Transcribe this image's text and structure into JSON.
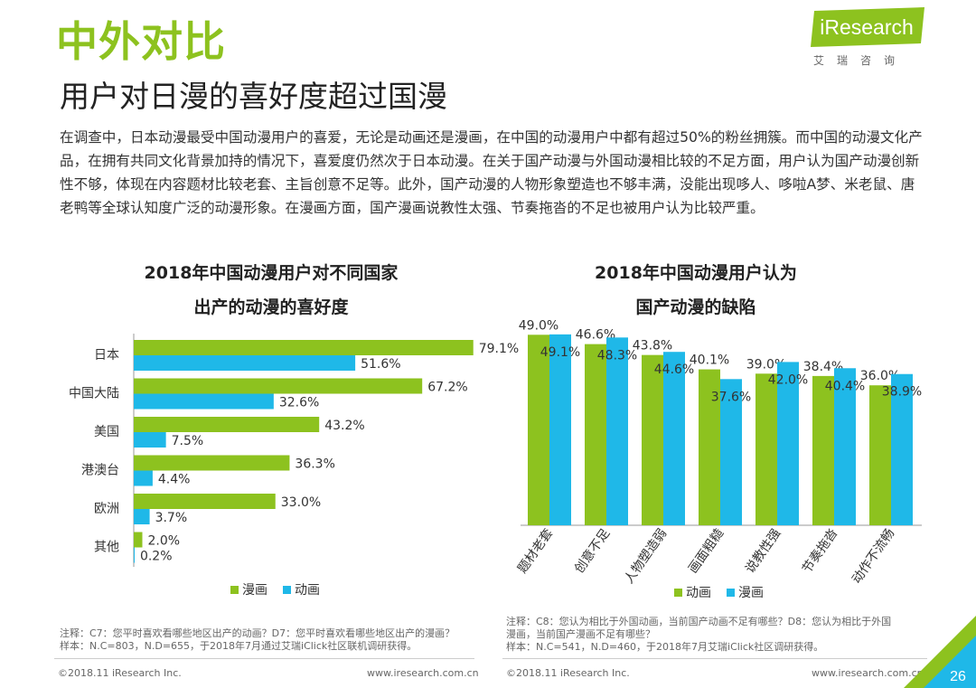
{
  "header": {
    "title": "中外对比",
    "subtitle": "用户对日漫的喜好度超过国漫",
    "logo_text": "iResearch",
    "logo_cn": "艾瑞咨询"
  },
  "intro": "在调查中，日本动漫最受中国动漫用户的喜爱，无论是动画还是漫画，在中国的动漫用户中都有超过50%的粉丝拥簇。而中国的动漫文化产品，在拥有共同文化背景加持的情况下，喜爱度仍然次于日本动漫。在关于国产动漫与外国动漫相比较的不足方面，用户认为国产动漫创新性不够，体现在内容题材比较老套、主旨创意不足等。此外，国产动漫的人物形象塑造也不够丰满，没能出现哆人、哆啦A梦、米老鼠、唐老鸭等全球认知度广泛的动漫形象。在漫画方面，国产漫画说教性太强、节奏拖沓的不足也被用户认为比较严重。",
  "colors": {
    "manga": "#8dc21f",
    "anime": "#1fb8e8"
  },
  "chart_data": [
    {
      "type": "bar",
      "orientation": "horizontal",
      "title": "2018年中国动漫用户对不同国家出产的动漫的喜好度",
      "title_lines": [
        "2018年中国动漫用户对不同国家",
        "出产的动漫的喜好度"
      ],
      "categories": [
        "日本",
        "中国大陆",
        "美国",
        "港澳台",
        "欧洲",
        "其他"
      ],
      "series": [
        {
          "name": "漫画",
          "values": [
            79.1,
            67.2,
            43.2,
            36.3,
            33.0,
            2.0
          ],
          "labels": [
            "79.1%",
            "67.2%",
            "43.2%",
            "36.3%",
            "33.0%",
            "2.0%"
          ]
        },
        {
          "name": "动画",
          "values": [
            51.6,
            32.6,
            7.5,
            4.4,
            3.7,
            0.2
          ],
          "labels": [
            "51.6%",
            "32.6%",
            "7.5%",
            "4.4%",
            "3.7%",
            "0.2%"
          ]
        }
      ],
      "legend_position": "bottom"
    },
    {
      "type": "bar",
      "orientation": "vertical",
      "title": "2018年中国动漫用户认为国产动漫的缺陷",
      "title_lines": [
        "2018年中国动漫用户认为",
        "国产动漫的缺陷"
      ],
      "categories": [
        "题材老套",
        "创意不足",
        "人物塑造弱",
        "画面粗糙",
        "说教性强",
        "节奏拖沓",
        "动作不流畅"
      ],
      "series": [
        {
          "name": "动画",
          "values": [
            49.0,
            46.6,
            43.8,
            40.1,
            39.0,
            38.4,
            36.0
          ],
          "labels": [
            "49.0%",
            "46.6%",
            "43.8%",
            "40.1%",
            "39.0%",
            "38.4%",
            "36.0%"
          ]
        },
        {
          "name": "漫画",
          "values": [
            49.1,
            48.3,
            44.6,
            37.6,
            42.0,
            40.4,
            38.9
          ],
          "labels": [
            "49.1%",
            "48.3%",
            "44.6%",
            "37.6%",
            "42.0%",
            "40.4%",
            "38.9%"
          ]
        }
      ],
      "legend_position": "bottom"
    }
  ],
  "notes": {
    "left": [
      "注释：C7：您平时喜欢看哪些地区出产的动画？D7：您平时喜欢看哪些地区出产的漫画？",
      "样本：N.C=803，N.D=655，于2018年7月通过艾瑞iClick社区联机调研获得。"
    ],
    "right": [
      "注释：C8：您认为相比于外国动画，当前国产动画不足有哪些？D8：您认为相比于外国",
      "漫画，当前国产漫画不足有哪些？",
      "样本：N.C=541，N.D=460，于2018年7月艾瑞iClick社区调研获得。"
    ]
  },
  "footer": {
    "copyright_left": "©2018.11 iResearch Inc.",
    "url_left": "www.iresearch.com.cn",
    "copyright_right": "©2018.11 iResearch Inc.",
    "url_right": "www.iresearch.com.cn",
    "page_number": "26"
  }
}
